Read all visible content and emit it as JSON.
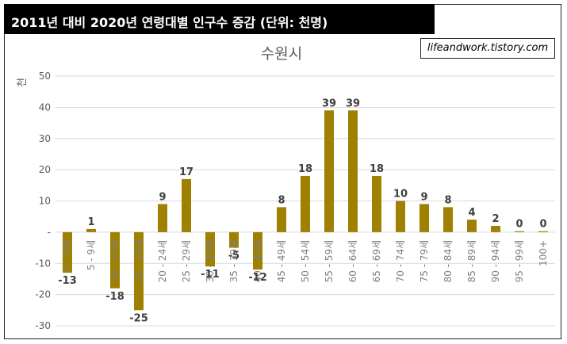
{
  "header": {
    "title": "2011년 대비 2020년 연령대별 인구수 증감 (단위: 천명)"
  },
  "watermark": "lifeandwork.tistory.com",
  "colors": {
    "bar": "#A08000",
    "gridline": "#d9d9d9",
    "header_bg": "#000000"
  },
  "chart_data": {
    "type": "bar",
    "title": "수원시",
    "ylabel": "천",
    "ylim": [
      -30,
      50
    ],
    "yticks": [
      {
        "value": 50,
        "label": "50"
      },
      {
        "value": 40,
        "label": "40"
      },
      {
        "value": 30,
        "label": "30"
      },
      {
        "value": 20,
        "label": "20"
      },
      {
        "value": 10,
        "label": "10"
      },
      {
        "value": 0,
        "label": "-"
      },
      {
        "value": -10,
        "label": "-10"
      },
      {
        "value": -20,
        "label": "-20"
      },
      {
        "value": -30,
        "label": "-30"
      }
    ],
    "grid": true,
    "categories": [
      "0 - 4세",
      "5 - 9세",
      "10 - 14세",
      "15 - 19세",
      "20 - 24세",
      "25 - 29세",
      "30 - 34세",
      "35 - 39세",
      "40 - 44세",
      "45 - 49세",
      "50 - 54세",
      "55 - 59세",
      "60 - 64세",
      "65 - 69세",
      "70 - 74세",
      "75 - 79세",
      "80 - 84세",
      "85 - 89세",
      "90 - 94세",
      "95 - 99세",
      "100+"
    ],
    "values": [
      -13,
      1,
      -18,
      -25,
      9,
      17,
      -11,
      -5,
      -12,
      8,
      18,
      39,
      39,
      18,
      10,
      9,
      8,
      4,
      2,
      0.3,
      0.3
    ],
    "data_labels": [
      "-13",
      "1",
      "-18",
      "-25",
      "9",
      "17",
      "-11",
      "-5",
      "-12",
      "8",
      "18",
      "39",
      "39",
      "18",
      "10",
      "9",
      "8",
      "4",
      "2",
      "0",
      "0"
    ]
  }
}
